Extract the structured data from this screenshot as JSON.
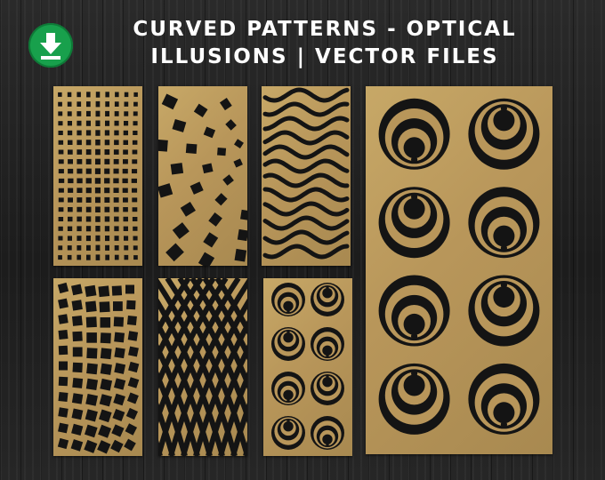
{
  "header": {
    "title_line1": "CURVED PATTERNS - OPTICAL",
    "title_line2": "ILLUSIONS | VECTOR FILES"
  },
  "icons": {
    "download": "download-arrow-icon"
  },
  "colors": {
    "background": "#232323",
    "gold": "#b8965a",
    "badge_green": "#18a04c",
    "title_text": "#ffffff"
  },
  "panels": [
    {
      "name": "grid-cube-illusion-panel"
    },
    {
      "name": "curved-squares-panel"
    },
    {
      "name": "wavy-lines-panel"
    },
    {
      "name": "concentric-arcs-large-panel"
    },
    {
      "name": "square-grid-curve-panel"
    },
    {
      "name": "curved-mesh-panel"
    },
    {
      "name": "concentric-arcs-small-panel"
    }
  ]
}
